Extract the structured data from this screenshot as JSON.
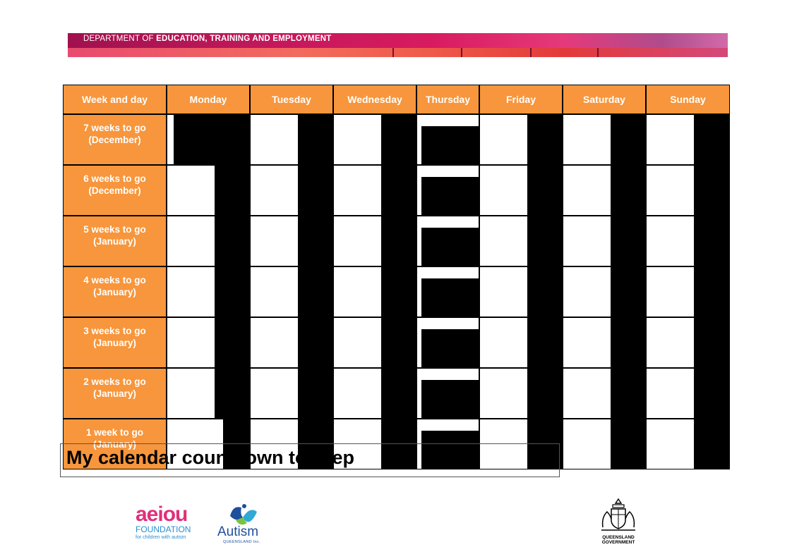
{
  "banner": {
    "text_regular": "DEPARTMENT OF ",
    "text_bold": "EDUCATION, TRAINING AND EMPLOYMENT"
  },
  "calendar": {
    "headers": [
      "Week and day",
      "Monday",
      "Tuesday",
      "Wednesday",
      "Thursday",
      "Friday",
      "Saturday",
      "Sunday"
    ],
    "rows": [
      {
        "line1": "7  weeks to go",
        "line2": "(December)"
      },
      {
        "line1": "6  weeks to go",
        "line2": "(December)"
      },
      {
        "line1": "5 weeks to go",
        "line2": "(January)"
      },
      {
        "line1": "4 weeks to go",
        "line2": "(January)"
      },
      {
        "line1": "3 weeks to go",
        "line2": "(January)"
      },
      {
        "line1": "2 weeks to go",
        "line2": "(January)"
      },
      {
        "line1": "1 week to go",
        "line2": "(January)"
      }
    ]
  },
  "caption": "My calendar countdown to Prep",
  "logos": {
    "aeiou_word": "aeiou",
    "aeiou_foundation": "FOUNDATION",
    "aeiou_tagline": "for children with autism",
    "autism_word": "Autism",
    "autism_sub": "QUEENSLAND Inc.",
    "qld_line1": "QUEENSLAND",
    "qld_line2": "GOVERNMENT"
  },
  "colors": {
    "header_orange": "#f7963c",
    "banner_magenta": "#c2185b",
    "aeiou_pink": "#e0307a",
    "autism_blue": "#1d4f9c"
  }
}
